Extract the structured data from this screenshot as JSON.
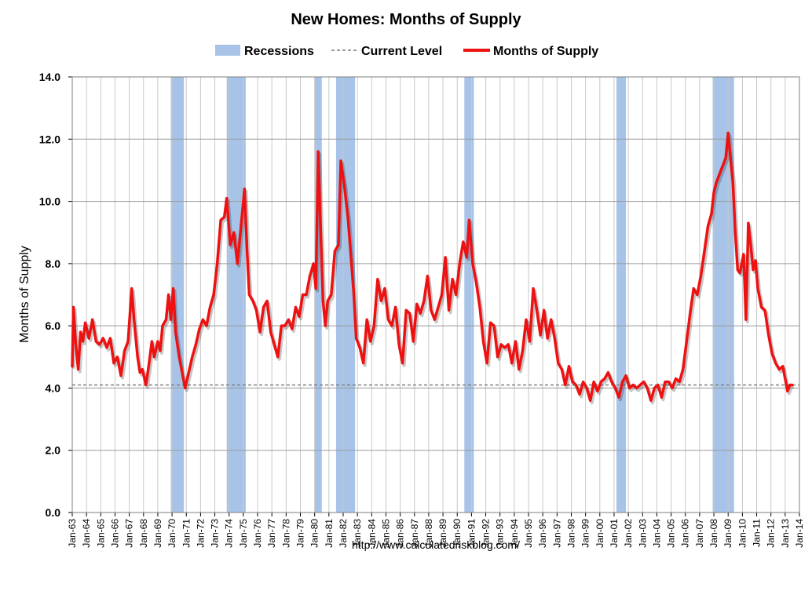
{
  "chart_data": {
    "type": "line",
    "title": "New Homes: Months of Supply",
    "xlabel": "",
    "ylabel": "Months of Supply",
    "source": "http://www.calculatedriskblog.com/",
    "legend": {
      "position": "top",
      "entries": [
        {
          "name": "Recessions",
          "kind": "band",
          "color": "#a7c4e8"
        },
        {
          "name": "Current Level",
          "kind": "dashed-line",
          "color": "#7f7f7f"
        },
        {
          "name": "Months of Supply",
          "kind": "line",
          "color": "#ee1111"
        }
      ]
    },
    "ylim": [
      0,
      14
    ],
    "yticks": [
      "0.0",
      "2.0",
      "4.0",
      "6.0",
      "8.0",
      "10.0",
      "12.0",
      "14.0"
    ],
    "ytick_values": [
      0,
      2,
      4,
      6,
      8,
      10,
      12,
      14
    ],
    "xlim": [
      "1963-01",
      "2014-01"
    ],
    "xticks": [
      "Jan-63",
      "Jan-64",
      "Jan-65",
      "Jan-66",
      "Jan-67",
      "Jan-68",
      "Jan-69",
      "Jan-70",
      "Jan-71",
      "Jan-72",
      "Jan-73",
      "Jan-74",
      "Jan-75",
      "Jan-76",
      "Jan-77",
      "Jan-78",
      "Jan-79",
      "Jan-80",
      "Jan-81",
      "Jan-82",
      "Jan-83",
      "Jan-84",
      "Jan-85",
      "Jan-86",
      "Jan-87",
      "Jan-88",
      "Jan-89",
      "Jan-90",
      "Jan-91",
      "Jan-92",
      "Jan-93",
      "Jan-94",
      "Jan-95",
      "Jan-96",
      "Jan-97",
      "Jan-98",
      "Jan-99",
      "Jan-00",
      "Jan-01",
      "Jan-02",
      "Jan-03",
      "Jan-04",
      "Jan-05",
      "Jan-06",
      "Jan-07",
      "Jan-08",
      "Jan-09",
      "Jan-10",
      "Jan-11",
      "Jan-12",
      "Jan-13",
      "Jan-14"
    ],
    "grid": true,
    "current_level": 4.1,
    "recessions": [
      [
        "1969-12",
        "1970-11"
      ],
      [
        "1973-11",
        "1975-03"
      ],
      [
        "1980-01",
        "1980-07"
      ],
      [
        "1981-07",
        "1982-11"
      ],
      [
        "1990-07",
        "1991-03"
      ],
      [
        "2001-03",
        "2001-11"
      ],
      [
        "2007-12",
        "2009-06"
      ]
    ],
    "series": [
      {
        "name": "Months of Supply",
        "color": "#ee1111",
        "points": [
          [
            "1963-01",
            4.7
          ],
          [
            "1963-02",
            6.6
          ],
          [
            "1963-04",
            5.4
          ],
          [
            "1963-06",
            4.6
          ],
          [
            "1963-08",
            5.8
          ],
          [
            "1963-10",
            5.5
          ],
          [
            "1963-12",
            6.1
          ],
          [
            "1964-03",
            5.6
          ],
          [
            "1964-06",
            6.2
          ],
          [
            "1964-09",
            5.5
          ],
          [
            "1964-12",
            5.4
          ],
          [
            "1965-03",
            5.6
          ],
          [
            "1965-06",
            5.3
          ],
          [
            "1965-09",
            5.6
          ],
          [
            "1965-12",
            4.8
          ],
          [
            "1966-03",
            5.0
          ],
          [
            "1966-06",
            4.4
          ],
          [
            "1966-09",
            5.2
          ],
          [
            "1966-12",
            5.5
          ],
          [
            "1967-03",
            7.2
          ],
          [
            "1967-05",
            6.2
          ],
          [
            "1967-08",
            5.0
          ],
          [
            "1967-10",
            4.5
          ],
          [
            "1967-12",
            4.6
          ],
          [
            "1968-03",
            4.1
          ],
          [
            "1968-05",
            4.6
          ],
          [
            "1968-08",
            5.5
          ],
          [
            "1968-10",
            5.0
          ],
          [
            "1969-01",
            5.5
          ],
          [
            "1969-03",
            5.2
          ],
          [
            "1969-05",
            6.0
          ],
          [
            "1969-08",
            6.2
          ],
          [
            "1969-10",
            7.0
          ],
          [
            "1969-12",
            6.2
          ],
          [
            "1970-02",
            7.2
          ],
          [
            "1970-04",
            5.8
          ],
          [
            "1970-07",
            5.0
          ],
          [
            "1970-09",
            4.6
          ],
          [
            "1970-12",
            4.0
          ],
          [
            "1971-03",
            4.5
          ],
          [
            "1971-06",
            5.0
          ],
          [
            "1971-09",
            5.4
          ],
          [
            "1971-12",
            5.9
          ],
          [
            "1972-03",
            6.2
          ],
          [
            "1972-06",
            6.0
          ],
          [
            "1972-09",
            6.6
          ],
          [
            "1972-12",
            7.0
          ],
          [
            "1973-03",
            8.0
          ],
          [
            "1973-06",
            9.4
          ],
          [
            "1973-09",
            9.5
          ],
          [
            "1973-11",
            10.1
          ],
          [
            "1974-02",
            8.6
          ],
          [
            "1974-05",
            9.0
          ],
          [
            "1974-08",
            8.0
          ],
          [
            "1974-11",
            9.2
          ],
          [
            "1975-02",
            10.4
          ],
          [
            "1975-04",
            8.5
          ],
          [
            "1975-06",
            7.0
          ],
          [
            "1975-09",
            6.8
          ],
          [
            "1975-12",
            6.5
          ],
          [
            "1976-03",
            5.8
          ],
          [
            "1976-06",
            6.6
          ],
          [
            "1976-09",
            6.8
          ],
          [
            "1976-12",
            5.8
          ],
          [
            "1977-03",
            5.4
          ],
          [
            "1977-06",
            5.0
          ],
          [
            "1977-09",
            6.0
          ],
          [
            "1977-12",
            6.0
          ],
          [
            "1978-03",
            6.2
          ],
          [
            "1978-06",
            5.9
          ],
          [
            "1978-09",
            6.6
          ],
          [
            "1978-12",
            6.3
          ],
          [
            "1979-03",
            7.0
          ],
          [
            "1979-06",
            7.0
          ],
          [
            "1979-09",
            7.6
          ],
          [
            "1979-12",
            8.0
          ],
          [
            "1980-02",
            7.2
          ],
          [
            "1980-04",
            11.6
          ],
          [
            "1980-06",
            9.2
          ],
          [
            "1980-08",
            6.8
          ],
          [
            "1980-10",
            6.0
          ],
          [
            "1980-12",
            6.8
          ],
          [
            "1981-03",
            7.0
          ],
          [
            "1981-06",
            8.4
          ],
          [
            "1981-09",
            8.6
          ],
          [
            "1981-11",
            11.3
          ],
          [
            "1982-02",
            10.5
          ],
          [
            "1982-05",
            9.5
          ],
          [
            "1982-08",
            8.0
          ],
          [
            "1982-10",
            7.0
          ],
          [
            "1982-12",
            5.6
          ],
          [
            "1983-03",
            5.3
          ],
          [
            "1983-06",
            4.8
          ],
          [
            "1983-09",
            6.2
          ],
          [
            "1983-12",
            5.5
          ],
          [
            "1984-03",
            6.0
          ],
          [
            "1984-06",
            7.5
          ],
          [
            "1984-09",
            6.8
          ],
          [
            "1984-12",
            7.2
          ],
          [
            "1985-03",
            6.2
          ],
          [
            "1985-06",
            6.0
          ],
          [
            "1985-09",
            6.6
          ],
          [
            "1985-12",
            5.4
          ],
          [
            "1986-03",
            4.8
          ],
          [
            "1986-06",
            6.5
          ],
          [
            "1986-09",
            6.4
          ],
          [
            "1986-12",
            5.5
          ],
          [
            "1987-03",
            6.7
          ],
          [
            "1987-06",
            6.4
          ],
          [
            "1987-09",
            6.8
          ],
          [
            "1987-12",
            7.6
          ],
          [
            "1988-03",
            6.5
          ],
          [
            "1988-06",
            6.2
          ],
          [
            "1988-09",
            6.6
          ],
          [
            "1988-12",
            7.0
          ],
          [
            "1989-03",
            8.2
          ],
          [
            "1989-06",
            6.5
          ],
          [
            "1989-09",
            7.5
          ],
          [
            "1989-12",
            7.0
          ],
          [
            "1990-03",
            8.0
          ],
          [
            "1990-06",
            8.7
          ],
          [
            "1990-09",
            8.2
          ],
          [
            "1990-11",
            9.4
          ],
          [
            "1991-02",
            8.0
          ],
          [
            "1991-05",
            7.4
          ],
          [
            "1991-08",
            6.6
          ],
          [
            "1991-11",
            5.5
          ],
          [
            "1992-02",
            4.8
          ],
          [
            "1992-05",
            6.1
          ],
          [
            "1992-08",
            6.0
          ],
          [
            "1992-11",
            5.0
          ],
          [
            "1993-02",
            5.4
          ],
          [
            "1993-05",
            5.3
          ],
          [
            "1993-08",
            5.4
          ],
          [
            "1993-11",
            4.8
          ],
          [
            "1994-02",
            5.5
          ],
          [
            "1994-05",
            4.6
          ],
          [
            "1994-08",
            5.2
          ],
          [
            "1994-11",
            6.2
          ],
          [
            "1995-02",
            5.5
          ],
          [
            "1995-05",
            7.2
          ],
          [
            "1995-08",
            6.5
          ],
          [
            "1995-11",
            5.7
          ],
          [
            "1996-02",
            6.5
          ],
          [
            "1996-05",
            5.6
          ],
          [
            "1996-08",
            6.2
          ],
          [
            "1996-11",
            5.6
          ],
          [
            "1997-02",
            4.8
          ],
          [
            "1997-05",
            4.6
          ],
          [
            "1997-08",
            4.1
          ],
          [
            "1997-11",
            4.7
          ],
          [
            "1998-02",
            4.2
          ],
          [
            "1998-05",
            4.1
          ],
          [
            "1998-08",
            3.8
          ],
          [
            "1998-11",
            4.2
          ],
          [
            "1999-02",
            4.0
          ],
          [
            "1999-05",
            3.6
          ],
          [
            "1999-08",
            4.2
          ],
          [
            "1999-11",
            3.9
          ],
          [
            "2000-02",
            4.2
          ],
          [
            "2000-05",
            4.3
          ],
          [
            "2000-08",
            4.5
          ],
          [
            "2000-11",
            4.2
          ],
          [
            "2001-02",
            4.0
          ],
          [
            "2001-05",
            3.7
          ],
          [
            "2001-08",
            4.2
          ],
          [
            "2001-11",
            4.4
          ],
          [
            "2002-02",
            4.0
          ],
          [
            "2002-05",
            4.1
          ],
          [
            "2002-08",
            4.0
          ],
          [
            "2002-11",
            4.1
          ],
          [
            "2003-02",
            4.2
          ],
          [
            "2003-05",
            4.0
          ],
          [
            "2003-08",
            3.6
          ],
          [
            "2003-11",
            4.0
          ],
          [
            "2004-02",
            4.1
          ],
          [
            "2004-05",
            3.7
          ],
          [
            "2004-08",
            4.2
          ],
          [
            "2004-11",
            4.2
          ],
          [
            "2005-02",
            4.0
          ],
          [
            "2005-05",
            4.3
          ],
          [
            "2005-08",
            4.2
          ],
          [
            "2005-11",
            4.6
          ],
          [
            "2006-02",
            5.5
          ],
          [
            "2006-05",
            6.4
          ],
          [
            "2006-08",
            7.2
          ],
          [
            "2006-11",
            7.0
          ],
          [
            "2007-02",
            7.6
          ],
          [
            "2007-05",
            8.4
          ],
          [
            "2007-08",
            9.2
          ],
          [
            "2007-11",
            9.6
          ],
          [
            "2008-01",
            10.3
          ],
          [
            "2008-03",
            10.6
          ],
          [
            "2008-05",
            10.8
          ],
          [
            "2008-07",
            11.0
          ],
          [
            "2008-09",
            11.2
          ],
          [
            "2008-11",
            11.4
          ],
          [
            "2009-01",
            12.2
          ],
          [
            "2009-03",
            11.4
          ],
          [
            "2009-05",
            10.6
          ],
          [
            "2009-07",
            9.0
          ],
          [
            "2009-09",
            7.8
          ],
          [
            "2009-11",
            7.7
          ],
          [
            "2010-02",
            8.3
          ],
          [
            "2010-04",
            6.2
          ],
          [
            "2010-06",
            9.3
          ],
          [
            "2010-08",
            8.6
          ],
          [
            "2010-10",
            7.8
          ],
          [
            "2010-12",
            8.1
          ],
          [
            "2011-02",
            7.2
          ],
          [
            "2011-05",
            6.6
          ],
          [
            "2011-08",
            6.5
          ],
          [
            "2011-11",
            5.7
          ],
          [
            "2012-02",
            5.1
          ],
          [
            "2012-05",
            4.8
          ],
          [
            "2012-08",
            4.6
          ],
          [
            "2012-11",
            4.7
          ],
          [
            "2013-01",
            4.3
          ],
          [
            "2013-03",
            3.9
          ],
          [
            "2013-05",
            4.1
          ],
          [
            "2013-07",
            4.1
          ]
        ]
      }
    ]
  }
}
